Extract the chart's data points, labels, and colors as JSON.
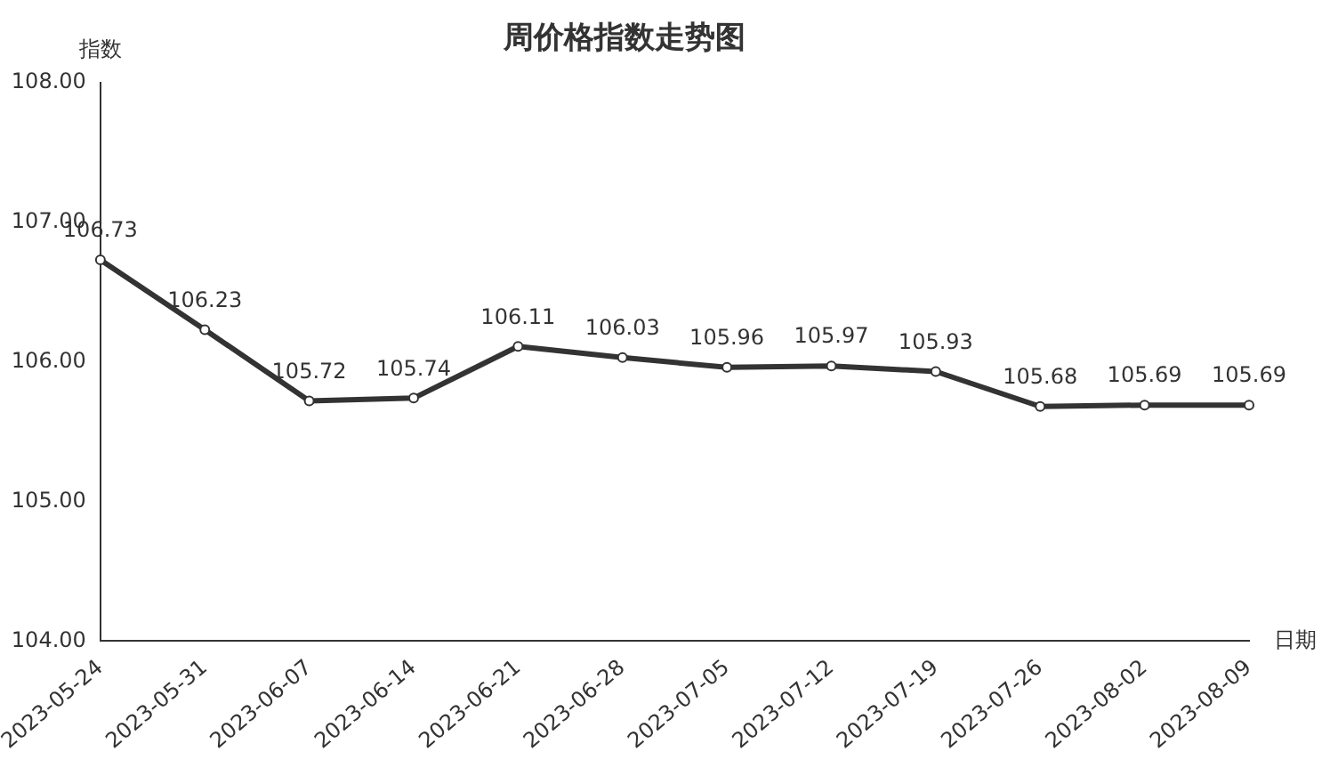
{
  "chart_data": {
    "type": "line",
    "title": "周价格指数走势图",
    "xlabel": "日期",
    "ylabel": "指数",
    "categories": [
      "2023-05-24",
      "2023-05-31",
      "2023-06-07",
      "2023-06-14",
      "2023-06-21",
      "2023-06-28",
      "2023-07-05",
      "2023-07-12",
      "2023-07-19",
      "2023-07-26",
      "2023-08-02",
      "2023-08-09"
    ],
    "series": [
      {
        "color": "#333333",
        "values": [
          106.73,
          106.23,
          105.72,
          105.74,
          106.11,
          106.03,
          105.96,
          105.97,
          105.93,
          105.68,
          105.69,
          105.69
        ]
      }
    ],
    "ylim": [
      104,
      108
    ],
    "yticks": [
      {
        "value": 104,
        "label": "104.00"
      },
      {
        "value": 105,
        "label": "105.00"
      },
      {
        "value": 106,
        "label": "106.00"
      },
      {
        "value": 107,
        "label": "107.00"
      },
      {
        "value": 108,
        "label": "108.00"
      }
    ],
    "data_labels": true,
    "grid": false,
    "legend": false,
    "marker": "circle",
    "line_style": "solid"
  }
}
